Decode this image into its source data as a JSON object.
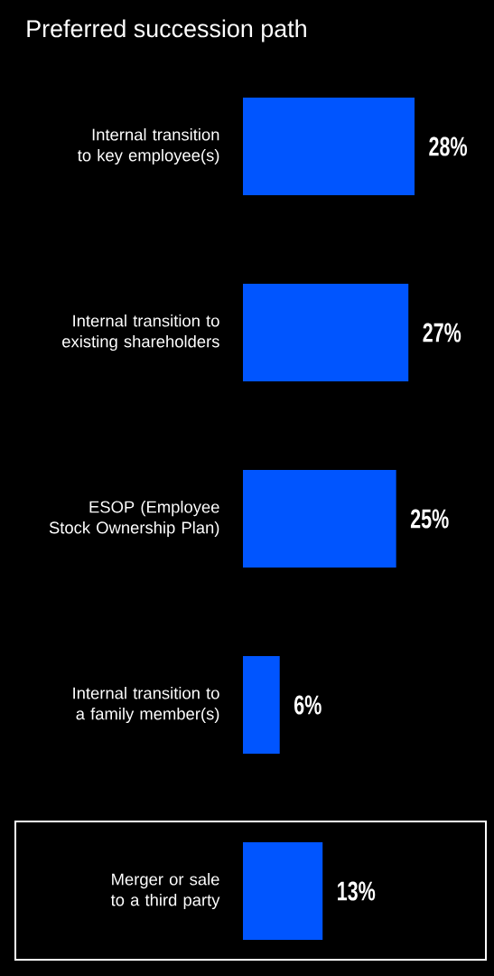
{
  "chart_data": {
    "type": "bar",
    "orientation": "horizontal",
    "title": "Preferred succession path",
    "categories": [
      "Internal transition to key employee(s)",
      "Internal transition to existing shareholders",
      "ESOP (Employee Stock Ownership Plan)",
      "Internal transition to a family member(s)",
      "Merger or sale to a third party"
    ],
    "values": [
      28,
      27,
      25,
      6,
      13
    ],
    "value_labels": [
      "28%",
      "27%",
      "25%",
      "6%",
      "13%"
    ],
    "color": "#0055ff"
  }
}
